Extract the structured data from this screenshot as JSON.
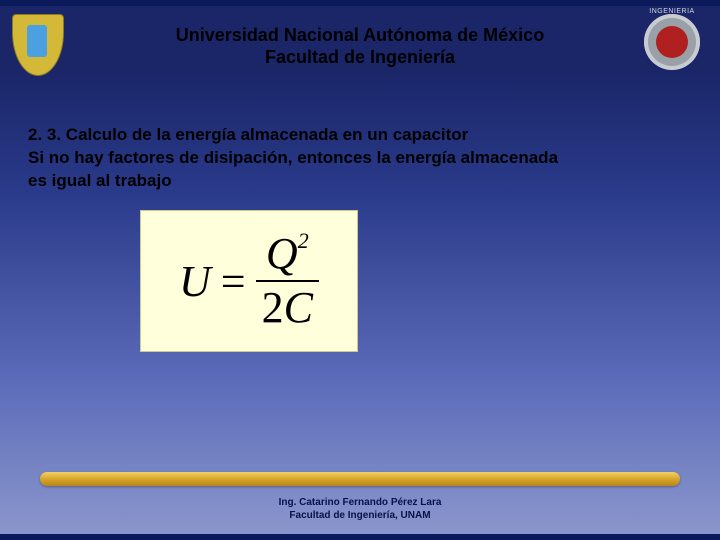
{
  "header": {
    "institution": "Universidad  Nacional Autónoma de México",
    "faculty": "Facultad de Ingeniería",
    "right_logo_label": "INGENIERIA"
  },
  "content": {
    "section_title": "2. 3. Calculo de la energía almacenada en un capacitor",
    "body_line1": "Si no hay factores de disipación, entonces la energía  almacenada",
    "body_line2": "es igual al trabajo"
  },
  "equation": {
    "lhs": "U",
    "equals": "=",
    "numerator_base": "Q",
    "numerator_exp": "2",
    "denominator_num": "2",
    "denominator_var": "C",
    "box_bg": "#ffffdb"
  },
  "footer": {
    "line1": "Ing. Catarino Fernando Pérez Lara",
    "line2": "Facultad de Ingeniería, UNAM"
  },
  "colors": {
    "gradient_top": "#1a2668",
    "gradient_bottom": "#8a96cc",
    "bar_gold": "#d8a62a",
    "text_black": "#000000",
    "footer_text": "#06124a"
  }
}
